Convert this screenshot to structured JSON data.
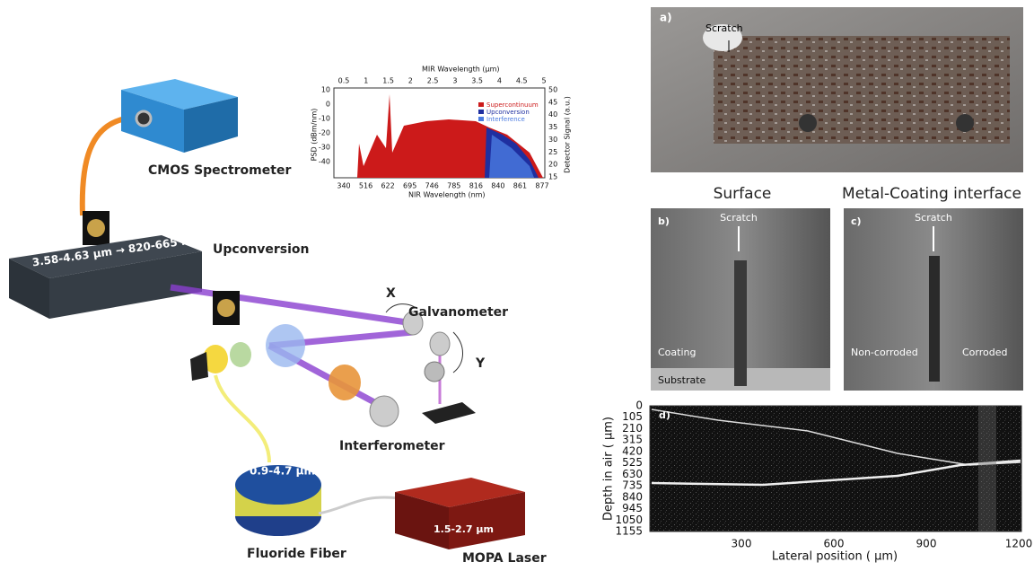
{
  "setup": {
    "spectrometer": "CMOS Spectrometer",
    "upconversion": "Upconversion",
    "conversion": "3.58-4.63 μm → 820-665 nm",
    "galvanometer": "Galvanometer",
    "x_axis": "X",
    "y_axis": "Y",
    "interferometer": "Interferometer",
    "fiber_range": "0.9-4.7 μm",
    "fiber": "Fluoride Fiber",
    "laser_range": "1.5-2.7 μm",
    "laser": "MOPA Laser"
  },
  "spectrum_inset": {
    "top_label": "MIR Wavelength (μm)",
    "top_ticks": [
      0.5,
      1,
      1.5,
      2,
      2.5,
      3,
      3.5,
      4,
      4.5,
      5
    ],
    "left_label": "PSD (dBm/nm)",
    "left_ticks": [
      10,
      0,
      -10,
      -20,
      -30,
      -40
    ],
    "right_label": "Detector Signal (a.u.)",
    "right_ticks": [
      50,
      45,
      40,
      35,
      30,
      25,
      20,
      15
    ],
    "bottom_label": "NIR Wavelength (nm)",
    "bottom_ticks": [
      340,
      516,
      622,
      695,
      746,
      785,
      816,
      840,
      861,
      877
    ],
    "legend": [
      "Supercontinuum",
      "Upconversion",
      "Interference"
    ]
  },
  "panels": {
    "a": {
      "tag": "a)",
      "scratch": "Scratch"
    },
    "surface_title": "Surface",
    "interface_title": "Metal-Coating interface",
    "b": {
      "tag": "b)",
      "scratch": "Scratch",
      "coating": "Coating",
      "substrate": "Substrate"
    },
    "c": {
      "tag": "c)",
      "scratch": "Scratch",
      "left": "Non-corroded",
      "right": "Corroded"
    },
    "d": {
      "tag": "d)",
      "y_label": "Depth in air ( μm)",
      "y_ticks": [
        0,
        105,
        210,
        315,
        420,
        525,
        630,
        735,
        840,
        945,
        1050,
        1155
      ],
      "x_label": "Lateral position ( μm)",
      "x_ticks": [
        300,
        600,
        900,
        1200
      ]
    }
  }
}
